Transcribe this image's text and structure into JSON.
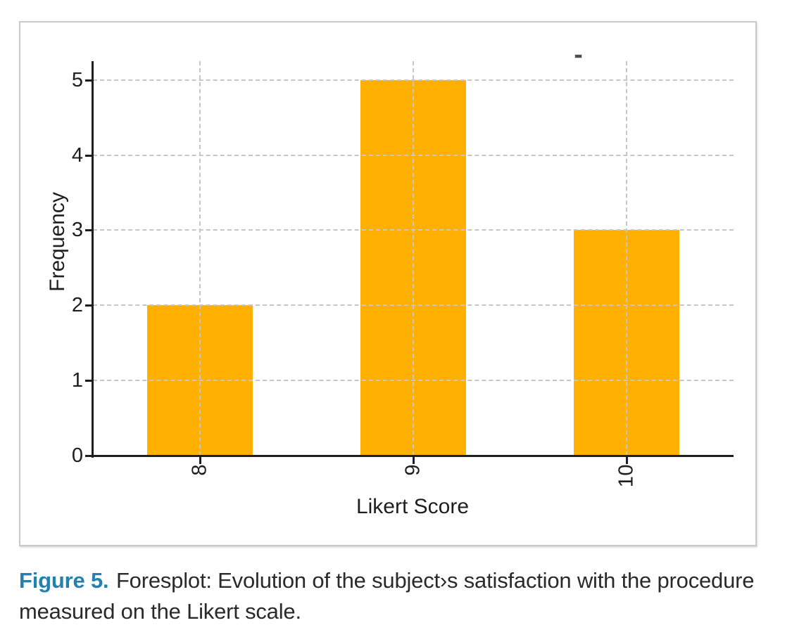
{
  "figure": {
    "caption": {
      "label": "Figure 5.",
      "text": "Foresplot: Evolution of the subject›s satisfaction with the procedure measured on the Likert scale.",
      "accent_color": "#2580b2"
    },
    "stray_mark": "small gray dash above plot near top-right"
  },
  "chart_data": {
    "type": "bar",
    "title": "",
    "xlabel": "Likert Score",
    "ylabel": "Frequency",
    "categories": [
      "8",
      "9",
      "10"
    ],
    "values": [
      2,
      5,
      3
    ],
    "yticks": [
      0,
      1,
      2,
      3,
      4,
      5
    ],
    "ylim": [
      0,
      5.25
    ],
    "xtick_rotation": 90,
    "legend": "none",
    "grid": "dashed gridlines on both axes, drawn over bars",
    "bar_color": "#ffb000",
    "gridline_color": "#c6c6c6",
    "axis_color": "#1e1e1e",
    "frame_border_color": "#c9c9c9"
  }
}
